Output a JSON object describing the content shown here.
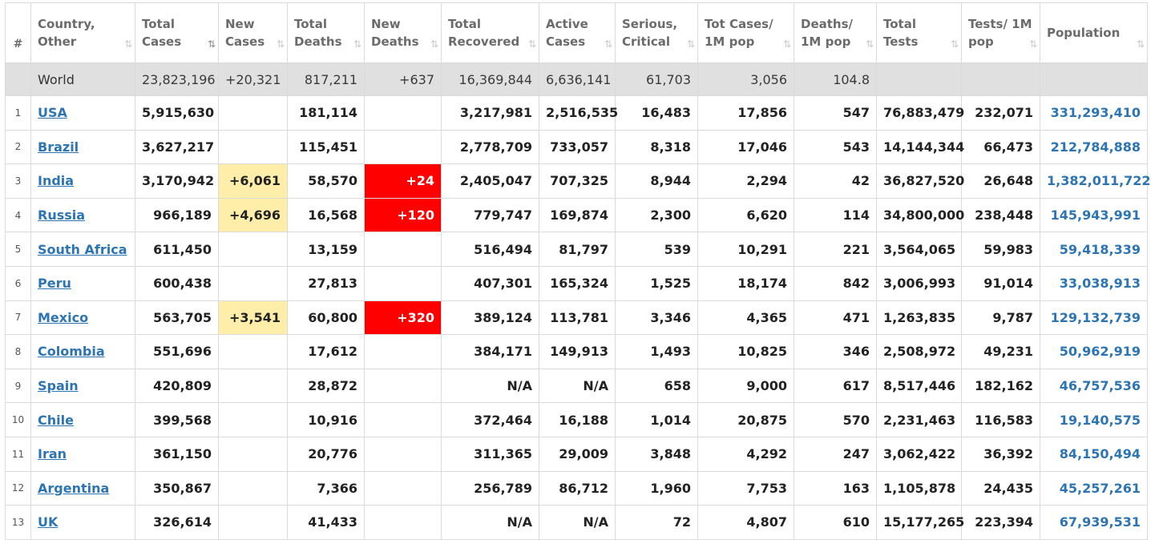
{
  "columns": [
    {
      "id": "rank",
      "label": "#",
      "sort": false,
      "sort_active": false
    },
    {
      "id": "country",
      "label": "Country, Other",
      "sort": true,
      "sort_active": false
    },
    {
      "id": "total_cases",
      "label": "Total Cases",
      "sort": true,
      "sort_active": true
    },
    {
      "id": "new_cases",
      "label": "New Cases",
      "sort": true,
      "sort_active": false
    },
    {
      "id": "total_deaths",
      "label": "Total Deaths",
      "sort": true,
      "sort_active": false
    },
    {
      "id": "new_deaths",
      "label": "New Deaths",
      "sort": true,
      "sort_active": false
    },
    {
      "id": "total_recovered",
      "label": "Total Recovered",
      "sort": true,
      "sort_active": false
    },
    {
      "id": "active_cases",
      "label": "Active Cases",
      "sort": true,
      "sort_active": false
    },
    {
      "id": "serious",
      "label": "Serious, Critical",
      "sort": true,
      "sort_active": false
    },
    {
      "id": "cases_per_m",
      "label": "Tot Cases/ 1M pop",
      "sort": true,
      "sort_active": false
    },
    {
      "id": "deaths_per_m",
      "label": "Deaths/ 1M pop",
      "sort": true,
      "sort_active": false
    },
    {
      "id": "total_tests",
      "label": "Total Tests",
      "sort": true,
      "sort_active": false
    },
    {
      "id": "tests_per_m",
      "label": "Tests/ 1M pop",
      "sort": true,
      "sort_active": false
    },
    {
      "id": "population",
      "label": "Population",
      "sort": true,
      "sort_active": false
    }
  ],
  "sort_icon": "⇅",
  "sort_icon_active": "⇅",
  "world_row": {
    "rank": "",
    "country": "World",
    "total_cases": "23,823,196",
    "new_cases": "+20,321",
    "total_deaths": "817,211",
    "new_deaths": "+637",
    "total_recovered": "16,369,844",
    "active_cases": "6,636,141",
    "serious": "61,703",
    "cases_per_m": "3,056",
    "deaths_per_m": "104.8",
    "total_tests": "",
    "tests_per_m": "",
    "population": ""
  },
  "rows": [
    {
      "rank": "1",
      "country": "USA",
      "total_cases": "5,915,630",
      "new_cases": "",
      "total_deaths": "181,114",
      "new_deaths": "",
      "total_recovered": "3,217,981",
      "active_cases": "2,516,535",
      "serious": "16,483",
      "cases_per_m": "17,856",
      "deaths_per_m": "547",
      "total_tests": "76,883,479",
      "tests_per_m": "232,071",
      "population": "331,293,410"
    },
    {
      "rank": "2",
      "country": "Brazil",
      "total_cases": "3,627,217",
      "new_cases": "",
      "total_deaths": "115,451",
      "new_deaths": "",
      "total_recovered": "2,778,709",
      "active_cases": "733,057",
      "serious": "8,318",
      "cases_per_m": "17,046",
      "deaths_per_m": "543",
      "total_tests": "14,144,344",
      "tests_per_m": "66,473",
      "population": "212,784,888"
    },
    {
      "rank": "3",
      "country": "India",
      "total_cases": "3,170,942",
      "new_cases": "+6,061",
      "total_deaths": "58,570",
      "new_deaths": "+24",
      "total_recovered": "2,405,047",
      "active_cases": "707,325",
      "serious": "8,944",
      "cases_per_m": "2,294",
      "deaths_per_m": "42",
      "total_tests": "36,827,520",
      "tests_per_m": "26,648",
      "population": "1,382,011,722"
    },
    {
      "rank": "4",
      "country": "Russia",
      "total_cases": "966,189",
      "new_cases": "+4,696",
      "total_deaths": "16,568",
      "new_deaths": "+120",
      "total_recovered": "779,747",
      "active_cases": "169,874",
      "serious": "2,300",
      "cases_per_m": "6,620",
      "deaths_per_m": "114",
      "total_tests": "34,800,000",
      "tests_per_m": "238,448",
      "population": "145,943,991"
    },
    {
      "rank": "5",
      "country": "South Africa",
      "total_cases": "611,450",
      "new_cases": "",
      "total_deaths": "13,159",
      "new_deaths": "",
      "total_recovered": "516,494",
      "active_cases": "81,797",
      "serious": "539",
      "cases_per_m": "10,291",
      "deaths_per_m": "221",
      "total_tests": "3,564,065",
      "tests_per_m": "59,983",
      "population": "59,418,339"
    },
    {
      "rank": "6",
      "country": "Peru",
      "total_cases": "600,438",
      "new_cases": "",
      "total_deaths": "27,813",
      "new_deaths": "",
      "total_recovered": "407,301",
      "active_cases": "165,324",
      "serious": "1,525",
      "cases_per_m": "18,174",
      "deaths_per_m": "842",
      "total_tests": "3,006,993",
      "tests_per_m": "91,014",
      "population": "33,038,913"
    },
    {
      "rank": "7",
      "country": "Mexico",
      "total_cases": "563,705",
      "new_cases": "+3,541",
      "total_deaths": "60,800",
      "new_deaths": "+320",
      "total_recovered": "389,124",
      "active_cases": "113,781",
      "serious": "3,346",
      "cases_per_m": "4,365",
      "deaths_per_m": "471",
      "total_tests": "1,263,835",
      "tests_per_m": "9,787",
      "population": "129,132,739"
    },
    {
      "rank": "8",
      "country": "Colombia",
      "total_cases": "551,696",
      "new_cases": "",
      "total_deaths": "17,612",
      "new_deaths": "",
      "total_recovered": "384,171",
      "active_cases": "149,913",
      "serious": "1,493",
      "cases_per_m": "10,825",
      "deaths_per_m": "346",
      "total_tests": "2,508,972",
      "tests_per_m": "49,231",
      "population": "50,962,919"
    },
    {
      "rank": "9",
      "country": "Spain",
      "total_cases": "420,809",
      "new_cases": "",
      "total_deaths": "28,872",
      "new_deaths": "",
      "total_recovered": "N/A",
      "active_cases": "N/A",
      "serious": "658",
      "cases_per_m": "9,000",
      "deaths_per_m": "617",
      "total_tests": "8,517,446",
      "tests_per_m": "182,162",
      "population": "46,757,536"
    },
    {
      "rank": "10",
      "country": "Chile",
      "total_cases": "399,568",
      "new_cases": "",
      "total_deaths": "10,916",
      "new_deaths": "",
      "total_recovered": "372,464",
      "active_cases": "16,188",
      "serious": "1,014",
      "cases_per_m": "20,875",
      "deaths_per_m": "570",
      "total_tests": "2,231,463",
      "tests_per_m": "116,583",
      "population": "19,140,575"
    },
    {
      "rank": "11",
      "country": "Iran",
      "total_cases": "361,150",
      "new_cases": "",
      "total_deaths": "20,776",
      "new_deaths": "",
      "total_recovered": "311,365",
      "active_cases": "29,009",
      "serious": "3,848",
      "cases_per_m": "4,292",
      "deaths_per_m": "247",
      "total_tests": "3,062,422",
      "tests_per_m": "36,392",
      "population": "84,150,494"
    },
    {
      "rank": "12",
      "country": "Argentina",
      "total_cases": "350,867",
      "new_cases": "",
      "total_deaths": "7,366",
      "new_deaths": "",
      "total_recovered": "256,789",
      "active_cases": "86,712",
      "serious": "1,960",
      "cases_per_m": "7,753",
      "deaths_per_m": "163",
      "total_tests": "1,105,878",
      "tests_per_m": "24,435",
      "population": "45,257,261"
    },
    {
      "rank": "13",
      "country": "UK",
      "total_cases": "326,614",
      "new_cases": "",
      "total_deaths": "41,433",
      "new_deaths": "",
      "total_recovered": "N/A",
      "active_cases": "N/A",
      "serious": "72",
      "cases_per_m": "4,807",
      "deaths_per_m": "610",
      "total_tests": "15,177,265",
      "tests_per_m": "223,394",
      "population": "67,939,531"
    }
  ],
  "colors": {
    "new_cases_highlight": "#ffeeaa",
    "new_deaths_highlight": "#ff0000",
    "link": "#2d74b2",
    "world_row_bg": "#e0e0e0"
  }
}
